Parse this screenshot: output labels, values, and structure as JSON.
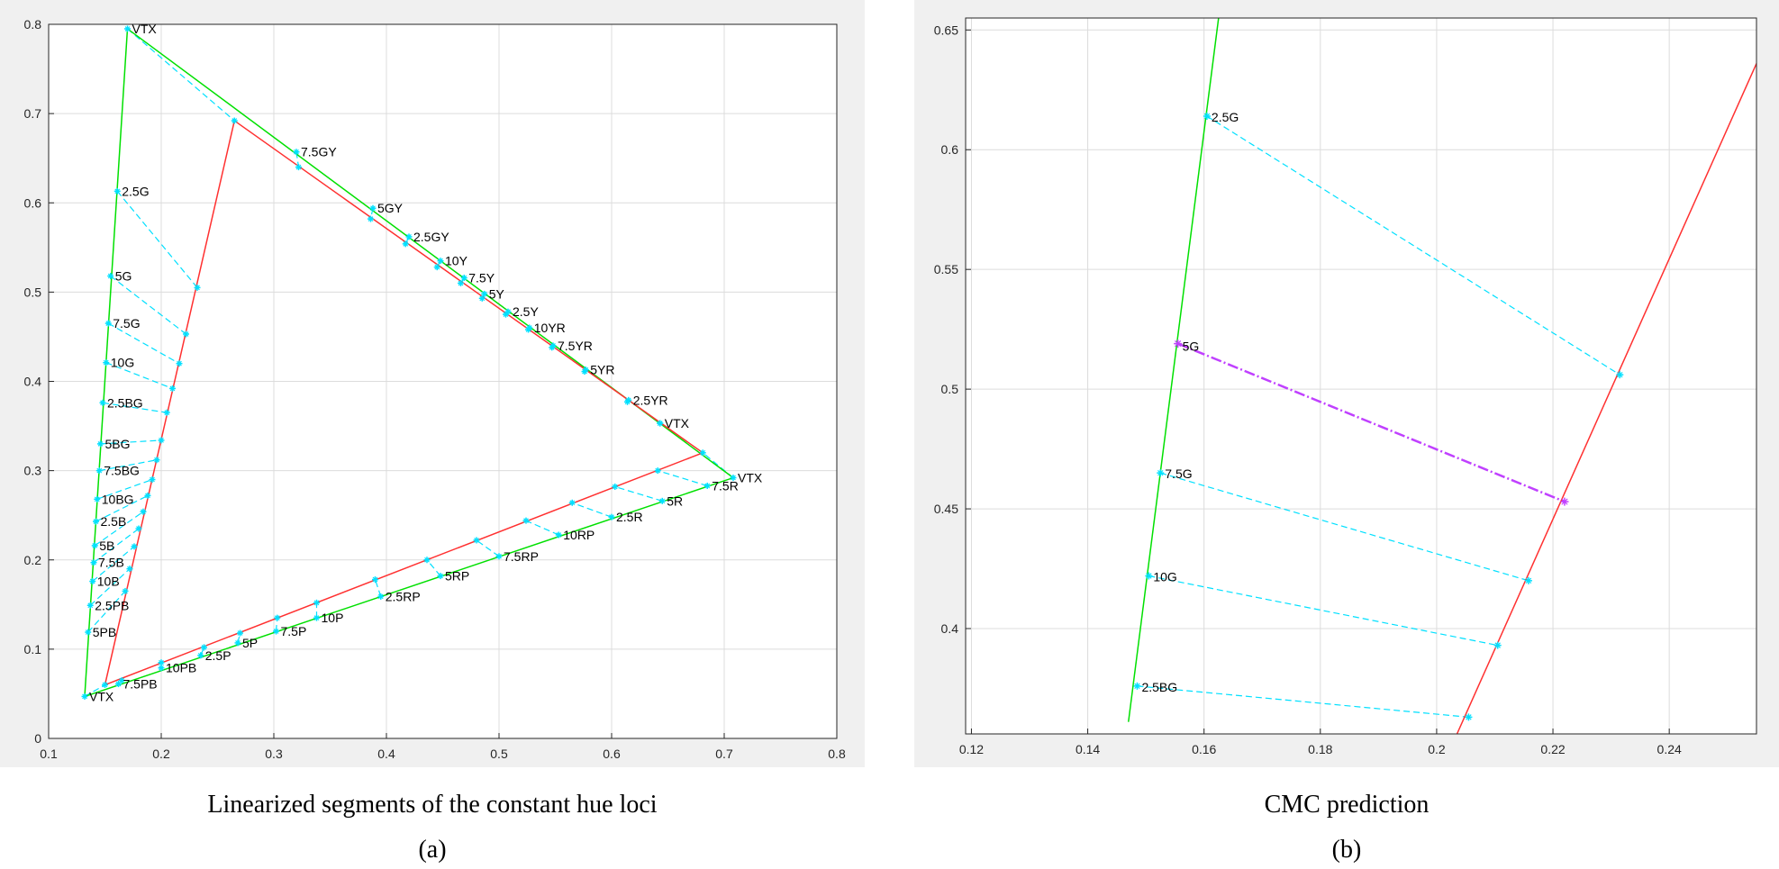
{
  "chart_data": [
    {
      "type": "line",
      "panel": "a",
      "caption": "Linearized segments of the constant hue loci",
      "sublabel": "(a)",
      "xlim": [
        0.1,
        0.8
      ],
      "ylim": [
        0,
        0.8
      ],
      "xticks": [
        "0.1",
        "0.2",
        "0.3",
        "0.4",
        "0.5",
        "0.6",
        "0.7",
        "0.8"
      ],
      "yticks": [
        "0",
        "0.1",
        "0.2",
        "0.3",
        "0.4",
        "0.5",
        "0.6",
        "0.7",
        "0.8"
      ],
      "grid": true,
      "colors": {
        "green": "#00e000",
        "red": "#ff3030",
        "cyan": "#00e0ff"
      },
      "green_boundary": [
        [
          0.17,
          0.795
        ],
        [
          0.132,
          0.047
        ],
        [
          0.708,
          0.292
        ],
        [
          0.17,
          0.795
        ]
      ],
      "red_boundary": [
        [
          0.265,
          0.692
        ],
        [
          0.15,
          0.06
        ],
        [
          0.681,
          0.32
        ],
        [
          0.265,
          0.692
        ]
      ],
      "cyan_segments": [
        {
          "label": "VTX",
          "g": [
            0.17,
            0.795
          ],
          "r": [
            0.265,
            0.692
          ]
        },
        {
          "label": "2.5G",
          "g": [
            0.161,
            0.613
          ],
          "r": [
            0.232,
            0.505
          ]
        },
        {
          "label": "5G",
          "g": [
            0.155,
            0.518
          ],
          "r": [
            0.222,
            0.453
          ]
        },
        {
          "label": "7.5G",
          "g": [
            0.153,
            0.465
          ],
          "r": [
            0.216,
            0.42
          ]
        },
        {
          "label": "10G",
          "g": [
            0.151,
            0.421
          ],
          "r": [
            0.21,
            0.392
          ]
        },
        {
          "label": "2.5BG",
          "g": [
            0.148,
            0.376
          ],
          "r": [
            0.205,
            0.365
          ]
        },
        {
          "label": "5BG",
          "g": [
            0.146,
            0.33
          ],
          "r": [
            0.2,
            0.334
          ]
        },
        {
          "label": "7.5BG",
          "g": [
            0.145,
            0.3
          ],
          "r": [
            0.196,
            0.312
          ]
        },
        {
          "label": "10BG",
          "g": [
            0.143,
            0.268
          ],
          "r": [
            0.192,
            0.29
          ]
        },
        {
          "label": "2.5B",
          "g": [
            0.142,
            0.243
          ],
          "r": [
            0.188,
            0.272
          ]
        },
        {
          "label": "5B",
          "g": [
            0.141,
            0.216
          ],
          "r": [
            0.184,
            0.254
          ]
        },
        {
          "label": "7.5B",
          "g": [
            0.14,
            0.197
          ],
          "r": [
            0.18,
            0.235
          ]
        },
        {
          "label": "10B",
          "g": [
            0.139,
            0.176
          ],
          "r": [
            0.176,
            0.215
          ]
        },
        {
          "label": "2.5PB",
          "g": [
            0.137,
            0.149
          ],
          "r": [
            0.172,
            0.19
          ]
        },
        {
          "label": "5PB",
          "g": [
            0.135,
            0.119
          ],
          "r": [
            0.168,
            0.165
          ]
        },
        {
          "label": "7.5PB",
          "g": [
            0.162,
            0.061
          ],
          "r": [
            0.165,
            0.065
          ]
        },
        {
          "label": "10PB",
          "g": [
            0.2,
            0.079
          ],
          "r": [
            0.2,
            0.085
          ]
        },
        {
          "label": "2.5P",
          "g": [
            0.235,
            0.093
          ],
          "r": [
            0.238,
            0.102
          ]
        },
        {
          "label": "5P",
          "g": [
            0.268,
            0.107
          ],
          "r": [
            0.27,
            0.118
          ]
        },
        {
          "label": "7.5P",
          "g": [
            0.302,
            0.12
          ],
          "r": [
            0.303,
            0.135
          ]
        },
        {
          "label": "10P",
          "g": [
            0.338,
            0.135
          ],
          "r": [
            0.338,
            0.152
          ]
        },
        {
          "label": "2.5RP",
          "g": [
            0.395,
            0.159
          ],
          "r": [
            0.39,
            0.178
          ]
        },
        {
          "label": "5RP",
          "g": [
            0.448,
            0.182
          ],
          "r": [
            0.436,
            0.2
          ]
        },
        {
          "label": "7.5RP",
          "g": [
            0.5,
            0.204
          ],
          "r": [
            0.48,
            0.222
          ]
        },
        {
          "label": "10RP",
          "g": [
            0.553,
            0.228
          ],
          "r": [
            0.524,
            0.244
          ]
        },
        {
          "label": "2.5R",
          "g": [
            0.6,
            0.248
          ],
          "r": [
            0.565,
            0.264
          ]
        },
        {
          "label": "5R",
          "g": [
            0.645,
            0.266
          ],
          "r": [
            0.603,
            0.282
          ]
        },
        {
          "label": "7.5R",
          "g": [
            0.685,
            0.283
          ],
          "r": [
            0.641,
            0.3
          ]
        },
        {
          "label": "VTX",
          "g": [
            0.708,
            0.292
          ],
          "r": [
            0.681,
            0.32
          ]
        },
        {
          "label": "VTX",
          "g": [
            0.132,
            0.047
          ],
          "r": [
            0.15,
            0.06
          ]
        },
        {
          "label": "7.5GY",
          "g": [
            0.32,
            0.657
          ],
          "r": [
            0.322,
            0.64
          ]
        },
        {
          "label": "5GY",
          "g": [
            0.388,
            0.594
          ],
          "r": [
            0.386,
            0.582
          ]
        },
        {
          "label": "2.5GY",
          "g": [
            0.42,
            0.562
          ],
          "r": [
            0.417,
            0.554
          ]
        },
        {
          "label": "10Y",
          "g": [
            0.448,
            0.535
          ],
          "r": [
            0.445,
            0.528
          ]
        },
        {
          "label": "7.5Y",
          "g": [
            0.469,
            0.516
          ],
          "r": [
            0.466,
            0.51
          ]
        },
        {
          "label": "5Y",
          "g": [
            0.487,
            0.498
          ],
          "r": [
            0.485,
            0.493
          ]
        },
        {
          "label": "2.5Y",
          "g": [
            0.508,
            0.478
          ],
          "r": [
            0.506,
            0.475
          ]
        },
        {
          "label": "10YR",
          "g": [
            0.527,
            0.46
          ],
          "r": [
            0.526,
            0.458
          ]
        },
        {
          "label": "7.5YR",
          "g": [
            0.548,
            0.44
          ],
          "r": [
            0.547,
            0.438
          ]
        },
        {
          "label": "5YR",
          "g": [
            0.577,
            0.413
          ],
          "r": [
            0.576,
            0.411
          ]
        },
        {
          "label": "2.5YR",
          "g": [
            0.615,
            0.379
          ],
          "r": [
            0.614,
            0.377
          ]
        },
        {
          "label": "VTX",
          "g": [
            0.643,
            0.353
          ],
          "r": [
            0.643,
            0.353
          ]
        }
      ]
    },
    {
      "type": "line",
      "panel": "b",
      "caption": "CMC prediction",
      "sublabel": "(b)",
      "xlim": [
        0.119,
        0.255
      ],
      "ylim": [
        0.356,
        0.655
      ],
      "xticks": [
        "0.12",
        "0.14",
        "0.16",
        "0.18",
        "0.2",
        "0.22",
        "0.24"
      ],
      "yticks": [
        "0.4",
        "0.45",
        "0.5",
        "0.55",
        "0.6",
        "0.65"
      ],
      "grid": true,
      "colors": {
        "green": "#00e000",
        "red": "#ff3030",
        "cyan": "#00e0ff",
        "magenta": "#c040ff"
      },
      "green_line": [
        [
          0.147,
          0.361
        ],
        [
          0.1625,
          0.655
        ]
      ],
      "red_line": [
        [
          0.2035,
          0.356
        ],
        [
          0.255,
          0.636
        ]
      ],
      "cyan_segments": [
        {
          "label": "2.5G",
          "g": [
            0.1605,
            0.614
          ],
          "r": [
            0.2315,
            0.506
          ]
        },
        {
          "label": "7.5G",
          "g": [
            0.1525,
            0.465
          ],
          "r": [
            0.2158,
            0.42
          ]
        },
        {
          "label": "10G",
          "g": [
            0.1505,
            0.422
          ],
          "r": [
            0.2105,
            0.393
          ]
        },
        {
          "label": "2.5BG",
          "g": [
            0.1485,
            0.376
          ],
          "r": [
            0.2055,
            0.363
          ]
        }
      ],
      "magenta_segment": {
        "label": "5G",
        "g": [
          0.1555,
          0.519
        ],
        "r": [
          0.222,
          0.453
        ]
      }
    }
  ]
}
